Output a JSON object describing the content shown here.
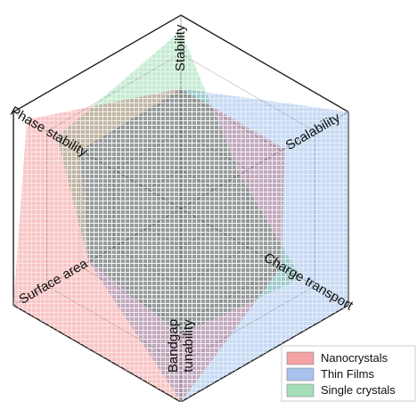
{
  "chart_data": {
    "type": "radar",
    "axes": [
      "Stability",
      "Scalability",
      "Charge transport",
      "Bandgap tunability",
      "Surface area",
      "Phase stability"
    ],
    "rmax": 1,
    "rings": [
      0.2,
      0.4,
      0.6,
      0.8,
      1.0
    ],
    "grid": true,
    "legend_position": "bottom-right",
    "series": [
      {
        "name": "Nanocrystals",
        "color": "#f4a3a3",
        "values": [
          0.62,
          0.62,
          0.6,
          1.0,
          1.0,
          0.92
        ]
      },
      {
        "name": "Thin Films",
        "color": "#a7c3ee",
        "values": [
          0.62,
          1.0,
          1.0,
          1.0,
          0.55,
          0.6
        ]
      },
      {
        "name": "Single crystals",
        "color": "#a5deb8",
        "values": [
          0.92,
          0.35,
          0.72,
          0.65,
          0.55,
          0.74
        ]
      }
    ]
  }
}
